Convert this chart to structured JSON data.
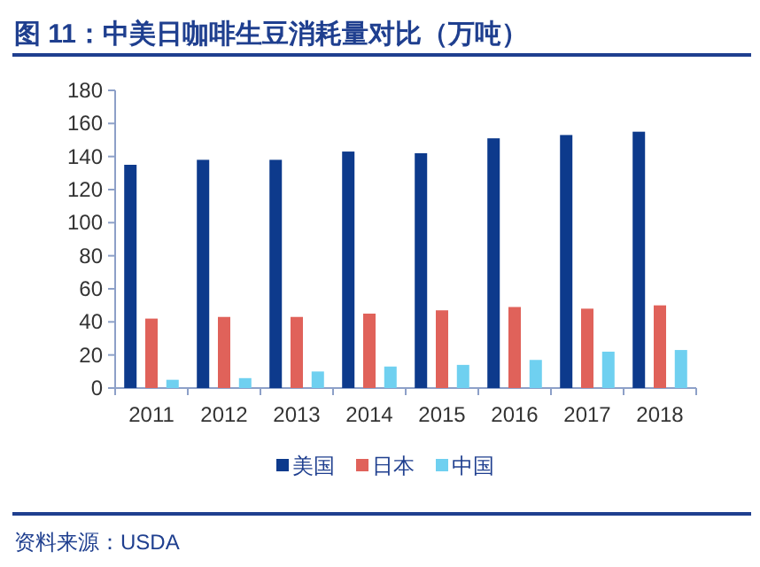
{
  "chart_data": {
    "type": "bar",
    "title": "图 11：中美日咖啡生豆消耗量对比（万吨）",
    "categories": [
      "2011",
      "2012",
      "2013",
      "2014",
      "2015",
      "2016",
      "2017",
      "2018"
    ],
    "series": [
      {
        "name": "美国",
        "color": "#0d3a8c",
        "values": [
          135,
          138,
          138,
          143,
          142,
          151,
          153,
          155
        ]
      },
      {
        "name": "日本",
        "color": "#e0625a",
        "values": [
          42,
          43,
          43,
          45,
          47,
          49,
          48,
          50
        ]
      },
      {
        "name": "中国",
        "color": "#6fd0f0",
        "values": [
          5,
          6,
          10,
          13,
          14,
          17,
          22,
          23
        ]
      }
    ],
    "ylim": [
      0,
      180
    ],
    "yticks": [
      0,
      20,
      40,
      60,
      80,
      100,
      120,
      140,
      160,
      180
    ],
    "grid": false,
    "legend": "bottom",
    "annotations": [
      "资料来源：USDA"
    ]
  }
}
